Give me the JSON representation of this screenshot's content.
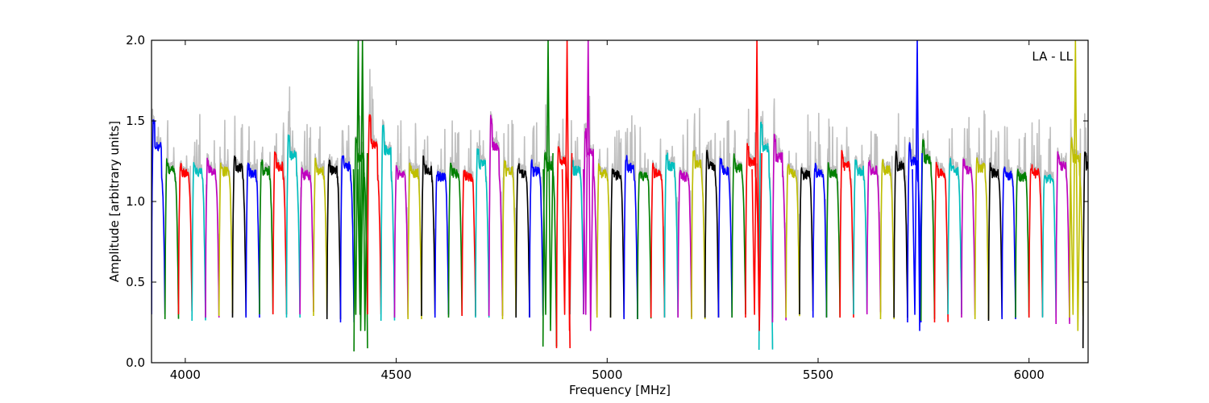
{
  "chart_data": {
    "type": "line",
    "title": "",
    "xlabel": "Frequency [MHz]",
    "ylabel": "Amplitude [arbitrary units]",
    "annotation": "LA - LL",
    "xlim": [
      3920,
      6140
    ],
    "ylim": [
      0.0,
      2.0
    ],
    "x_ticks": [
      4000,
      4500,
      5000,
      5500,
      6000
    ],
    "y_ticks": [
      0.0,
      0.5,
      1.0,
      1.5,
      2.0
    ],
    "x_tick_labels": [
      "4000",
      "4500",
      "5000",
      "5500",
      "6000"
    ],
    "y_tick_labels": [
      "0.0",
      "0.5",
      "1.0",
      "1.5",
      "2.0"
    ],
    "grid": false,
    "color_cycle": [
      "#0000ff",
      "#008000",
      "#ff0000",
      "#00bfbf",
      "#bf00bf",
      "#bfbf00",
      "#000000"
    ],
    "background_color": "#bfbfbf",
    "channel_width_mhz": 32,
    "channel_start_mhz": 3920,
    "channel_peaks": [
      1.52,
      1.25,
      1.22,
      1.24,
      1.25,
      1.24,
      1.28,
      1.22,
      1.25,
      1.3,
      1.42,
      1.2,
      1.25,
      1.25,
      1.3,
      1.4,
      1.55,
      1.48,
      1.2,
      1.22,
      1.26,
      1.18,
      1.22,
      1.18,
      1.32,
      1.52,
      1.24,
      1.22,
      1.24,
      1.3,
      1.35,
      1.25,
      1.45,
      1.22,
      1.2,
      1.28,
      1.18,
      1.22,
      1.3,
      1.18,
      1.32,
      1.3,
      1.25,
      1.28,
      1.35,
      1.5,
      1.4,
      1.22,
      1.2,
      1.22,
      1.22,
      1.3,
      1.25,
      1.25,
      1.25,
      1.3,
      1.35,
      1.38,
      1.22,
      1.25,
      1.25,
      1.28,
      1.22,
      1.2,
      1.18,
      1.22,
      1.15,
      1.3,
      1.38,
      1.3
    ],
    "channel_mins": [
      0.3,
      0.27,
      0.3,
      0.26,
      0.28,
      0.29,
      0.28,
      0.28,
      0.3,
      0.3,
      0.28,
      0.3,
      0.29,
      0.27,
      0.25,
      0.07,
      0.3,
      0.26,
      0.28,
      0.27,
      0.29,
      0.28,
      0.28,
      0.29,
      0.28,
      0.29,
      0.27,
      0.28,
      0.28,
      0.1,
      0.09,
      0.3,
      0.3,
      0.28,
      0.28,
      0.27,
      0.27,
      0.28,
      0.28,
      0.28,
      0.27,
      0.28,
      0.28,
      0.28,
      0.28,
      0.08,
      0.25,
      0.28,
      0.3,
      0.28,
      0.28,
      0.28,
      0.3,
      0.3,
      0.27,
      0.28,
      0.25,
      0.26,
      0.25,
      0.3,
      0.28,
      0.27,
      0.26,
      0.27,
      0.28,
      0.28,
      0.28,
      0.24,
      0.28,
      0.09
    ],
    "strong_spikes": [
      {
        "x": 4410,
        "y": 2.0
      },
      {
        "x": 4420,
        "y": 2.0
      },
      {
        "x": 4860,
        "y": 2.0
      },
      {
        "x": 4905,
        "y": 2.0
      },
      {
        "x": 4955,
        "y": 2.0
      },
      {
        "x": 5355,
        "y": 2.0
      },
      {
        "x": 5735,
        "y": 2.0
      },
      {
        "x": 6110,
        "y": 2.0
      }
    ]
  }
}
